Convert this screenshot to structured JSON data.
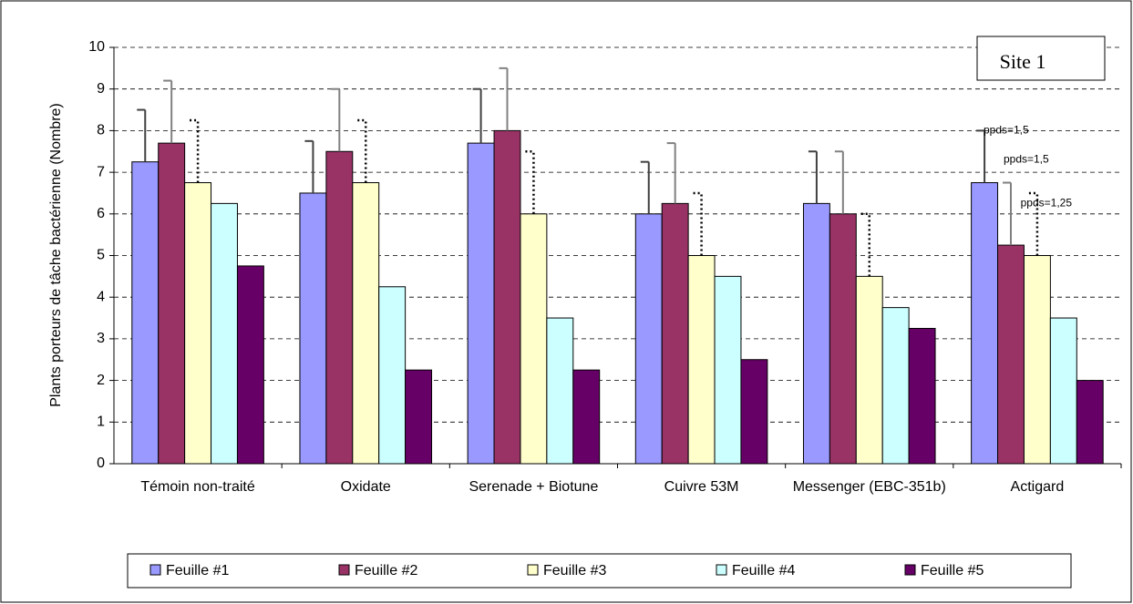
{
  "chart_data": {
    "type": "bar",
    "y_label": "Plants porteurs de tâche bactérienne (Nombre)",
    "box_label": "Site 1",
    "annotations": [
      "ppds=1,5",
      "ppds=1,5",
      "ppds=1,25"
    ],
    "categories": [
      "Témoin non-traité",
      "Oxidate",
      "Serenade + Biotune",
      "Cuivre 53M",
      "Messenger (EBC-351b)",
      "Actigard"
    ],
    "series": [
      {
        "name": "Feuille #1",
        "color": "#9999ff",
        "values": [
          7.25,
          6.5,
          7.7,
          6.0,
          6.25,
          6.75
        ],
        "errors": [
          1.25,
          1.25,
          1.3,
          1.25,
          1.25,
          1.25
        ],
        "error_color": "#404040",
        "error_style": "solid"
      },
      {
        "name": "Feuille #2",
        "color": "#993366",
        "values": [
          7.7,
          7.5,
          8.0,
          6.25,
          6.0,
          5.25
        ],
        "errors": [
          1.5,
          1.5,
          1.5,
          1.45,
          1.5,
          1.5
        ],
        "error_color": "#808080",
        "error_style": "solid"
      },
      {
        "name": "Feuille #3",
        "color": "#ffffcc",
        "values": [
          6.75,
          6.75,
          6.0,
          5.0,
          4.5,
          5.0
        ],
        "errors": [
          1.5,
          1.5,
          1.5,
          1.5,
          1.5,
          1.5
        ],
        "error_color": "#000000",
        "error_style": "dotted"
      },
      {
        "name": "Feuille #4",
        "color": "#ccffff",
        "values": [
          6.25,
          4.25,
          3.5,
          4.5,
          3.75,
          3.5
        ]
      },
      {
        "name": "Feuille #5",
        "color": "#660066",
        "values": [
          4.75,
          2.25,
          2.25,
          2.5,
          3.25,
          2.0
        ]
      }
    ],
    "ylim": [
      0,
      10
    ],
    "yticks": [
      0,
      1,
      2,
      3,
      4,
      5,
      6,
      7,
      8,
      9,
      10
    ],
    "grid": true,
    "legend": "bottom"
  }
}
